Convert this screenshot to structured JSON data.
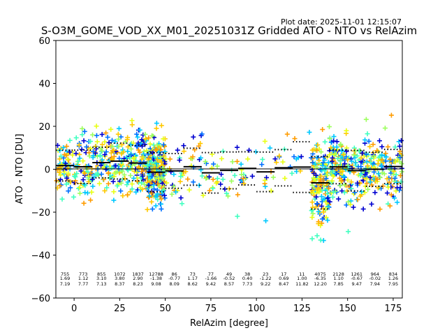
{
  "chart_data": {
    "type": "scatter",
    "title": "S-O3M_GOME_VOD_XX_M01_20251031Z Gridded ATO - NTO vs RelAzim",
    "plot_date": "Plot date: 2025-11-01 12:15:07",
    "xlabel": "RelAzim [degree]",
    "ylabel": "ATO - NTO [DU]",
    "xlim": [
      -10,
      180
    ],
    "ylim": [
      -60,
      60
    ],
    "xticks": [
      0,
      25,
      50,
      75,
      100,
      125,
      150,
      175
    ],
    "yticks": [
      -60,
      -40,
      -20,
      0,
      20,
      40,
      60
    ],
    "xtick_labels": [
      "0",
      "25",
      "50",
      "75",
      "100",
      "125",
      "150",
      "175"
    ],
    "ytick_labels": [
      "−60",
      "−40",
      "−20",
      "0",
      "20",
      "40",
      "60"
    ],
    "marker": "+",
    "colormap": [
      "#0000d0",
      "#0070ff",
      "#00c8ff",
      "#40ffc0",
      "#9cff5c",
      "#e8ff14",
      "#ffc800",
      "#ff9c00"
    ],
    "bins": [
      {
        "x": -5,
        "count": "755",
        "mean": "1.69",
        "std": "7.19",
        "mean_v": 1.69,
        "std_v": 7.19
      },
      {
        "x": 5,
        "count": "773",
        "mean": "1.12",
        "std": "7.77",
        "mean_v": 1.12,
        "std_v": 7.77
      },
      {
        "x": 15,
        "count": "855",
        "mean": "3.10",
        "std": "7.13",
        "mean_v": 3.1,
        "std_v": 7.13
      },
      {
        "x": 25,
        "count": "1072",
        "mean": "3.80",
        "std": "8.37",
        "mean_v": 3.8,
        "std_v": 8.37
      },
      {
        "x": 35,
        "count": "1837",
        "mean": "2.90",
        "std": "8.23",
        "mean_v": 2.9,
        "std_v": 8.23
      },
      {
        "x": 45,
        "count": "12788",
        "mean": "-1.38",
        "std": "9.08",
        "mean_v": -1.38,
        "std_v": 9.08
      },
      {
        "x": 55,
        "count": "86",
        "mean": "-0.77",
        "std": "8.09",
        "mean_v": -0.77,
        "std_v": 8.09
      },
      {
        "x": 65,
        "count": "73",
        "mean": "1.17",
        "std": "8.62",
        "mean_v": 1.17,
        "std_v": 8.62
      },
      {
        "x": 75,
        "count": "77",
        "mean": "-1.66",
        "std": "9.42",
        "mean_v": -1.66,
        "std_v": 9.42
      },
      {
        "x": 85,
        "count": "49",
        "mean": "-0.52",
        "std": "8.57",
        "mean_v": -0.52,
        "std_v": 8.57
      },
      {
        "x": 95,
        "count": "38",
        "mean": "0.40",
        "std": "7.73",
        "mean_v": 0.4,
        "std_v": 7.73
      },
      {
        "x": 105,
        "count": "23",
        "mean": "-1.22",
        "std": "9.22",
        "mean_v": -1.22,
        "std_v": 9.22
      },
      {
        "x": 115,
        "count": "17",
        "mean": "0.69",
        "std": "8.47",
        "mean_v": 0.69,
        "std_v": 8.47
      },
      {
        "x": 125,
        "count": "11",
        "mean": "1.00",
        "std": "11.82",
        "mean_v": 1.0,
        "std_v": 11.82
      },
      {
        "x": 135,
        "count": "4075",
        "mean": "-6.35",
        "std": "12.20",
        "mean_v": -6.35,
        "std_v": 12.2
      },
      {
        "x": 145,
        "count": "2128",
        "mean": "1.10",
        "std": "7.85",
        "mean_v": 1.1,
        "std_v": 7.85
      },
      {
        "x": 155,
        "count": "1261",
        "mean": "-0.67",
        "std": "9.47",
        "mean_v": -0.67,
        "std_v": 9.47
      },
      {
        "x": 165,
        "count": "964",
        "mean": "-0.02",
        "std": "7.94",
        "mean_v": -0.02,
        "std_v": 7.94
      },
      {
        "x": 175,
        "count": "834",
        "mean": "1.26",
        "std": "7.95",
        "mean_v": 1.26,
        "std_v": 7.95
      }
    ]
  }
}
